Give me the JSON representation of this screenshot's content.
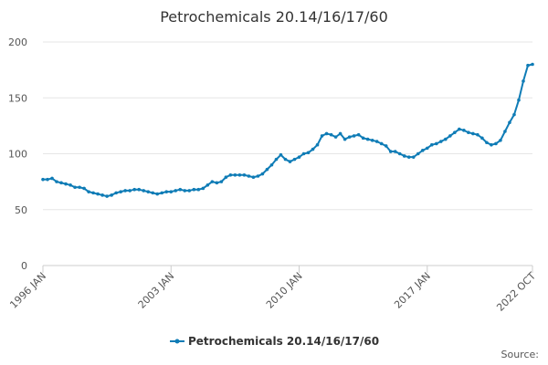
{
  "chart_data": {
    "type": "line",
    "title": "Petrochemicals 20.14/16/17/60",
    "source": "Source:",
    "categories": [
      "1996 JAN",
      null,
      null,
      null,
      null,
      null,
      null,
      null,
      null,
      null,
      null,
      null,
      null,
      null,
      null,
      null,
      null,
      null,
      null,
      null,
      null,
      null,
      null,
      null,
      null,
      null,
      null,
      null,
      "2003 JAN",
      null,
      null,
      null,
      null,
      null,
      null,
      null,
      null,
      null,
      null,
      null,
      null,
      null,
      null,
      null,
      null,
      null,
      null,
      null,
      null,
      null,
      null,
      null,
      null,
      null,
      null,
      null,
      "2010 JAN",
      null,
      null,
      null,
      null,
      null,
      null,
      null,
      null,
      null,
      null,
      null,
      null,
      null,
      null,
      null,
      null,
      null,
      null,
      null,
      null,
      null,
      null,
      null,
      null,
      null,
      null,
      null,
      "2017 JAN",
      null,
      null,
      null,
      null,
      null,
      null,
      null,
      null,
      null,
      null,
      null,
      null,
      null,
      null,
      null,
      null,
      null,
      null,
      null,
      null,
      null,
      null,
      "2022 OCT"
    ],
    "series": [
      {
        "name": "Petrochemicals 20.14/16/17/60",
        "color": "#0f7cb6",
        "values": [
          77,
          77,
          78,
          75,
          74,
          73,
          72,
          70,
          70,
          69,
          66,
          65,
          64,
          63,
          62,
          63,
          65,
          66,
          67,
          67,
          68,
          68,
          67,
          66,
          65,
          64,
          65,
          66,
          66,
          67,
          68,
          67,
          67,
          68,
          68,
          69,
          72,
          75,
          74,
          75,
          79,
          81,
          81,
          81,
          81,
          80,
          79,
          80,
          82,
          86,
          90,
          95,
          99,
          95,
          93,
          95,
          97,
          100,
          101,
          104,
          108,
          116,
          118,
          117,
          115,
          118,
          113,
          115,
          116,
          117,
          114,
          113,
          112,
          111,
          109,
          107,
          102,
          102,
          100,
          98,
          97,
          97,
          100,
          103,
          105,
          108,
          109,
          111,
          113,
          116,
          119,
          122,
          121,
          119,
          118,
          117,
          114,
          110,
          108,
          109,
          112,
          120,
          128,
          135,
          148,
          165,
          179,
          180
        ]
      }
    ],
    "ylim": [
      0,
      200
    ],
    "yticks": [
      0,
      50,
      100,
      150,
      200
    ],
    "grid": true
  }
}
